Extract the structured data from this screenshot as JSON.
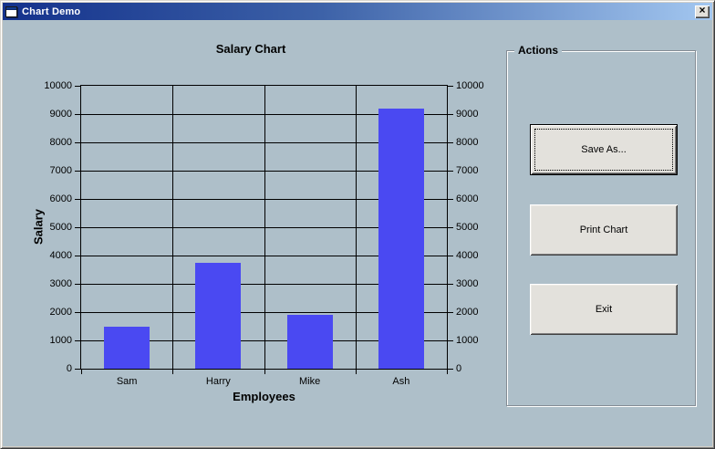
{
  "window": {
    "title": "Chart Demo",
    "close_icon": "×"
  },
  "colors": {
    "form_bg": "#AEBFC9",
    "titlebar_left": "#14328C",
    "titlebar_mid": "#3D62A8",
    "titlebar_right": "#A3C7F0",
    "title_text": "#FFFFFF",
    "button_face": "#E3E1DC",
    "bar": "#4A49F2"
  },
  "actions": {
    "legend": "Actions",
    "buttons": [
      {
        "id": "save-as",
        "label": "Save As..."
      },
      {
        "id": "print-chart",
        "label": "Print Chart"
      },
      {
        "id": "exit",
        "label": "Exit"
      }
    ]
  },
  "chart_data": {
    "type": "bar",
    "title": "Salary Chart",
    "xlabel": "Employees",
    "ylabel": "Salary",
    "categories": [
      "Sam",
      "Harry",
      "Mike",
      "Ash"
    ],
    "values": [
      1500,
      3750,
      1900,
      9200
    ],
    "ylim": [
      0,
      10000
    ],
    "ytick_step": 1000,
    "yticks": [
      0,
      1000,
      2000,
      3000,
      4000,
      5000,
      6000,
      7000,
      8000,
      9000,
      10000
    ],
    "right_axis_mirror": true,
    "grid": true,
    "legend_position": "none",
    "bar_color": "#4A49F2"
  }
}
